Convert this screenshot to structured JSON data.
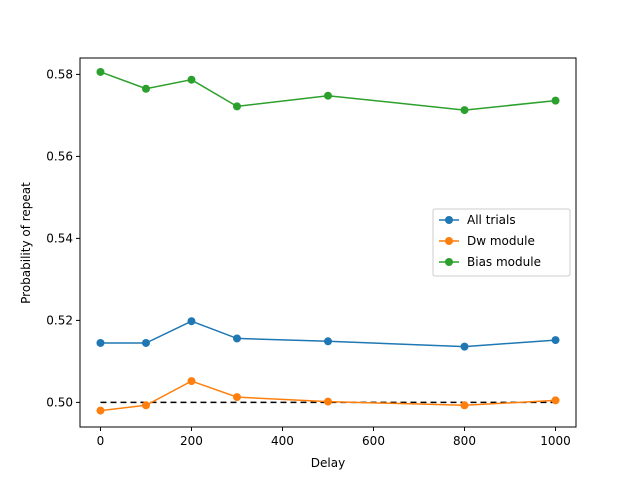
{
  "chart_data": {
    "type": "line",
    "title": "",
    "xlabel": "Delay",
    "ylabel": "Probability of repeat",
    "xlim": [
      -45,
      1045
    ],
    "ylim": [
      0.494,
      0.584
    ],
    "xticks": [
      0,
      200,
      400,
      600,
      800,
      1000
    ],
    "yticks": [
      0.5,
      0.52,
      0.54,
      0.56,
      0.58
    ],
    "ytick_labels": [
      "0.50",
      "0.52",
      "0.54",
      "0.56",
      "0.58"
    ],
    "x": [
      0,
      100,
      200,
      300,
      500,
      800,
      1000
    ],
    "series": [
      {
        "name": "All trials",
        "color": "#1f77b4",
        "values": [
          0.5145,
          0.5145,
          0.5198,
          0.5156,
          0.5149,
          0.5136,
          0.5152
        ]
      },
      {
        "name": "Dw module",
        "color": "#ff7f0e",
        "values": [
          0.498,
          0.4993,
          0.5052,
          0.5013,
          0.5002,
          0.4993,
          0.5005
        ]
      },
      {
        "name": "Bias module",
        "color": "#2ca02c",
        "values": [
          0.5806,
          0.5765,
          0.5787,
          0.5722,
          0.5748,
          0.5713,
          0.5736
        ]
      }
    ],
    "reference_line": {
      "y": 0.5,
      "x_range": [
        0,
        1000
      ],
      "style": "dashed",
      "color": "#000000"
    },
    "legend_position": "center-right",
    "grid": false
  }
}
